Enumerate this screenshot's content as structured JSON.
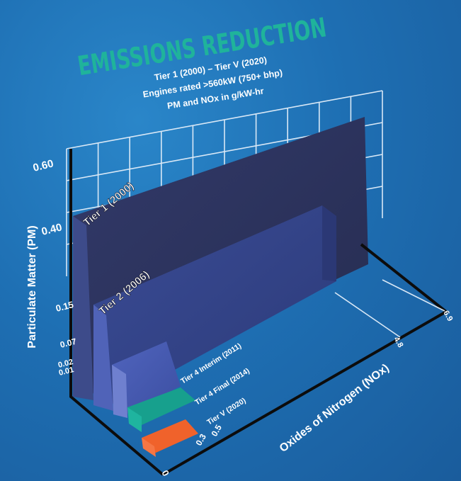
{
  "chart_data": {
    "type": "bar",
    "title": "EMISSIONS REDUCTION",
    "subtitle_lines": [
      "Tier 1 (2000) – Tier V (2020)",
      "Engines rated >560kW (750+ bhp)",
      "PM and NOx in g/kW-hr"
    ],
    "ylabel": "Particulate Matter (PM)",
    "xlabel": "Oxides of Nitrogen (NOx)",
    "y_ticks": [
      "0.60",
      "0.40",
      "0.15",
      "0.07",
      "0.02",
      "0.01"
    ],
    "x_ticks": [
      "0",
      "0.3",
      "0.5",
      "4.8",
      "6.9"
    ],
    "series": [
      {
        "name": "Tier 1 (2000)",
        "pm": 0.6,
        "nox": 9.2,
        "color": "#2c3563"
      },
      {
        "name": "Tier 2 (2006)",
        "pm": 0.4,
        "nox": 6.9,
        "color": "#33468f"
      },
      {
        "name": "Tier 4 Interim (2011)",
        "pm": 0.07,
        "nox": 2.8,
        "color": "#4658b0"
      },
      {
        "name": "Tier 4 Final (2014)",
        "pm": 0.02,
        "nox": 2.6,
        "color": "#1aa894"
      },
      {
        "name": "Tier V (2020)",
        "pm": 0.01,
        "nox": 0.4,
        "color": "#f0622b"
      }
    ]
  }
}
